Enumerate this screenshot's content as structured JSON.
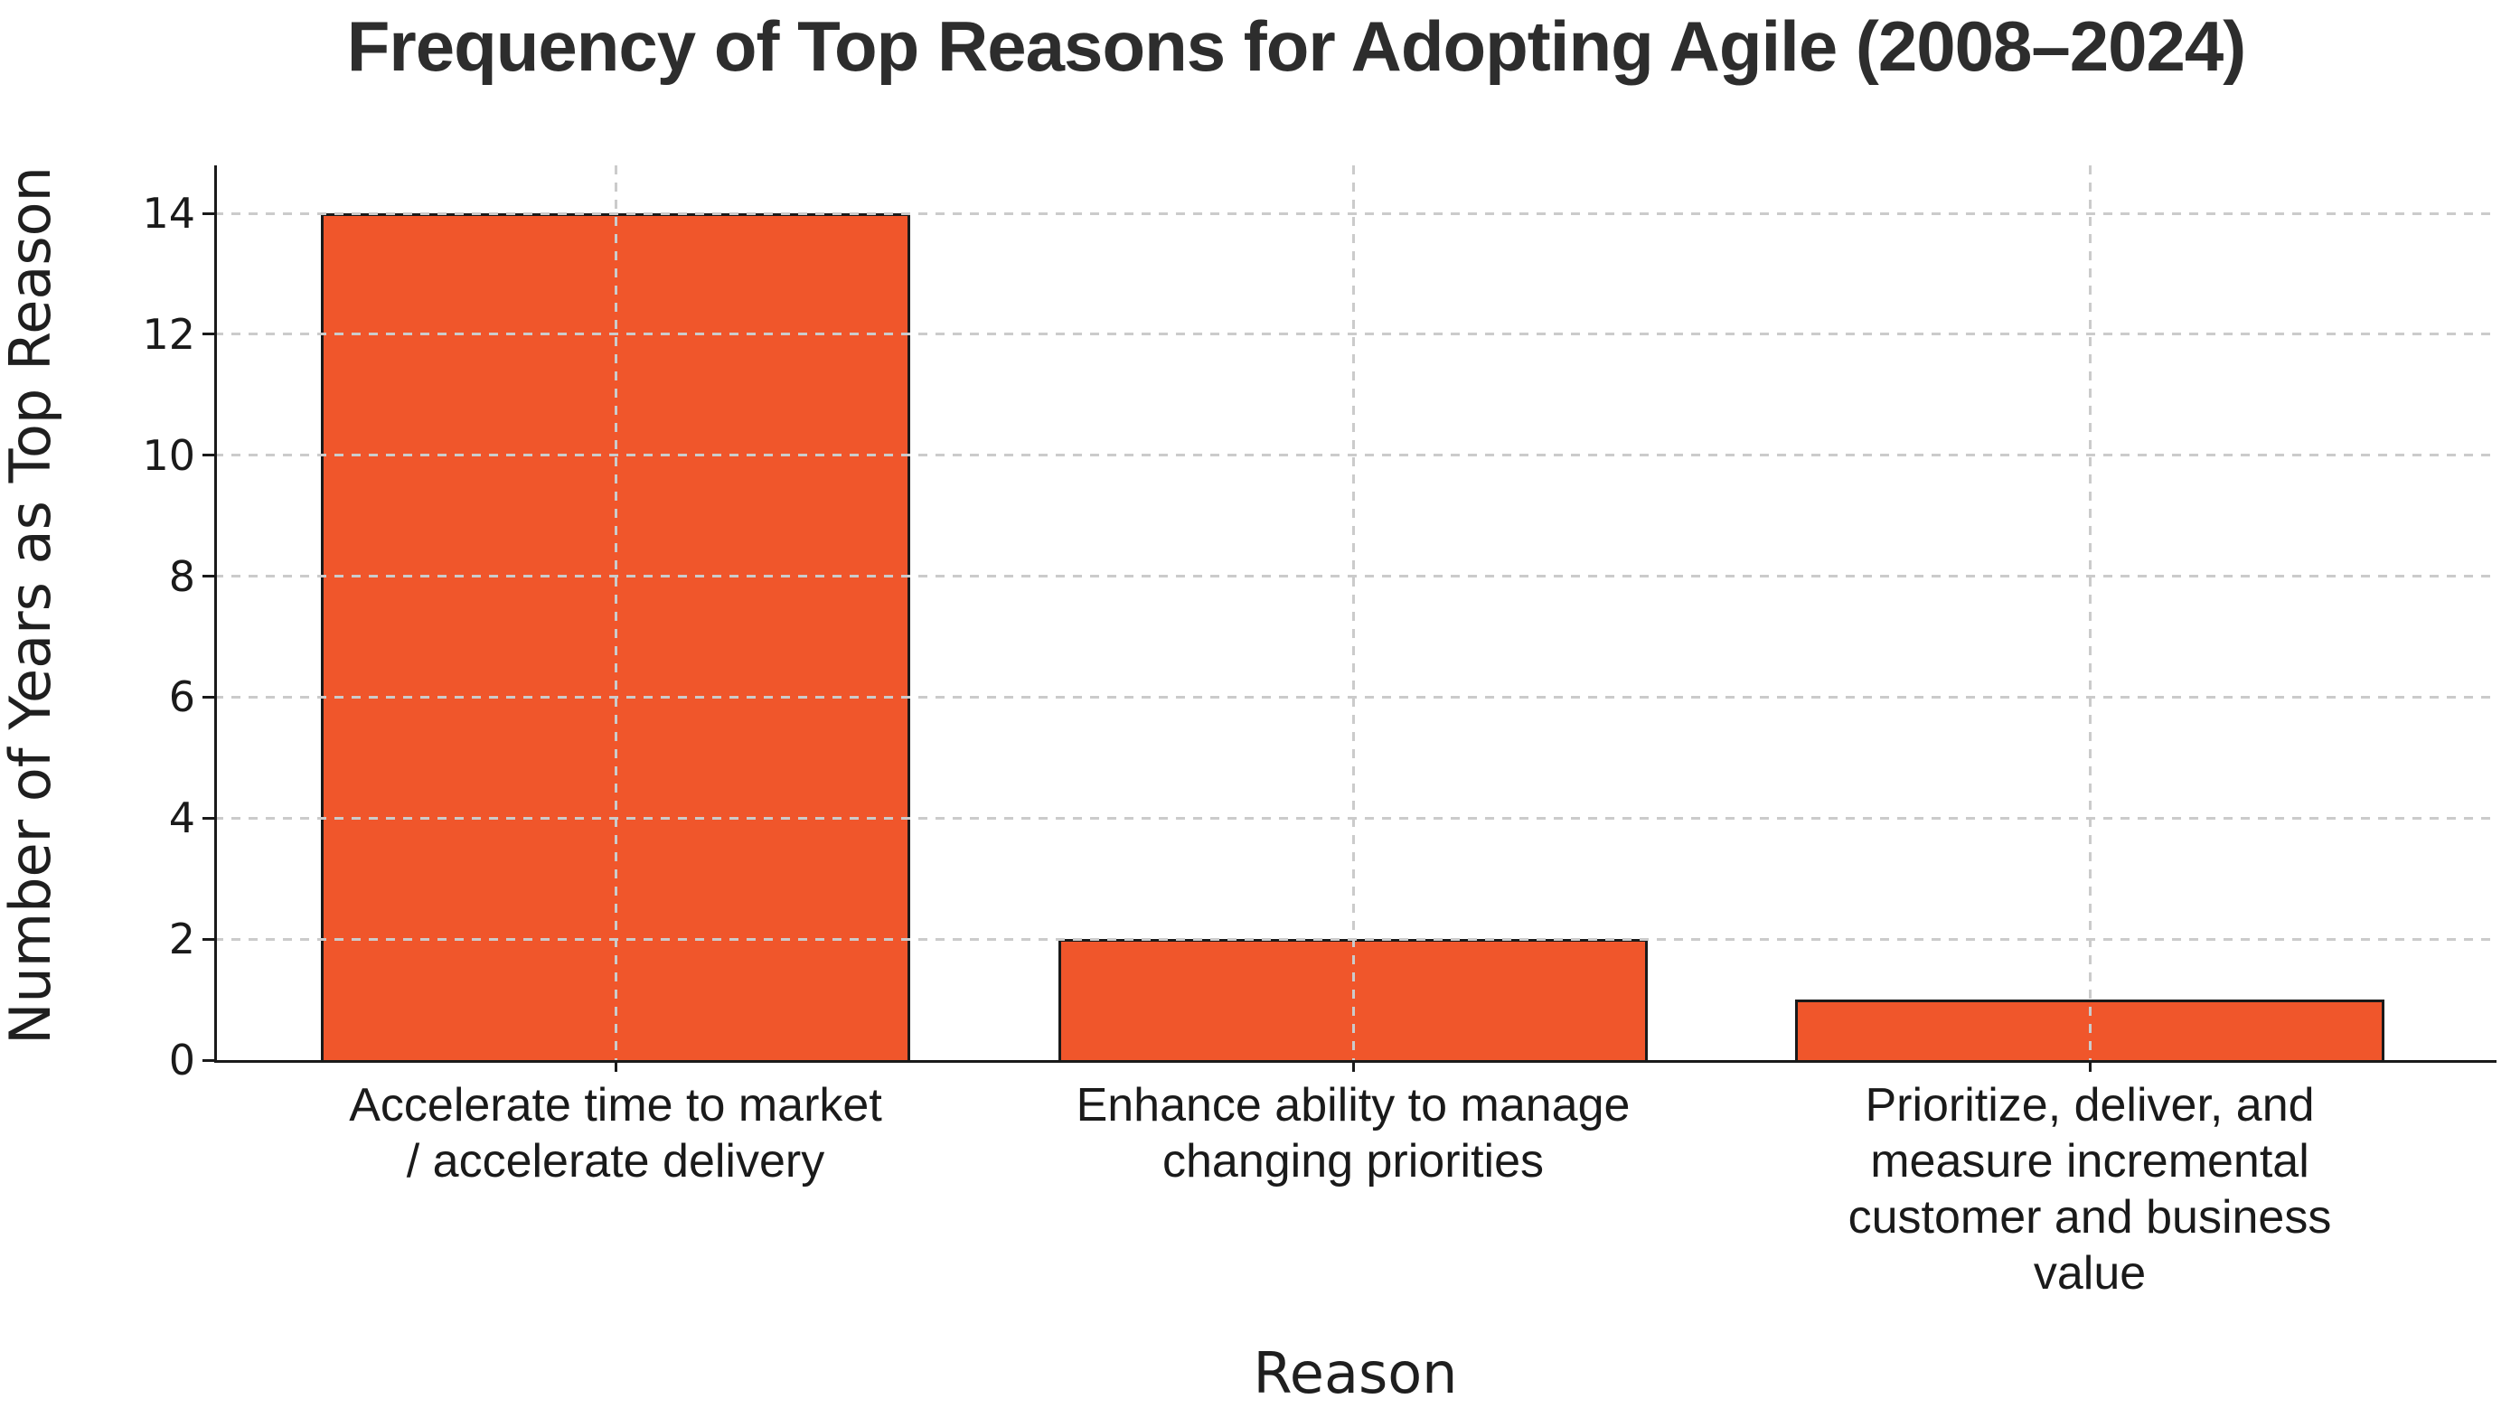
{
  "chart_data": {
    "type": "bar",
    "title": "Frequency of Top Reasons for Adopting Agile (2008–2024)",
    "xlabel": "Reason",
    "ylabel": "Number of Years as Top Reason",
    "categories": [
      "Accelerate time to market / accelerate delivery",
      "Enhance ability to manage changing priorities",
      "Prioritize, deliver, and measure incremental customer and business value"
    ],
    "category_lines": [
      [
        "Accelerate time to market",
        "/ accelerate delivery"
      ],
      [
        "Enhance ability to manage",
        "changing priorities"
      ],
      [
        "Prioritize, deliver, and",
        "measure incremental",
        "customer and business",
        "value"
      ]
    ],
    "values": [
      14,
      2,
      1
    ],
    "yticks": [
      0,
      2,
      4,
      6,
      8,
      10,
      12,
      14
    ],
    "ylim": [
      0,
      14.8
    ],
    "grid": "dashed gridlines on both axes, drawn above bars",
    "legend": "none",
    "colors": {
      "bar_fill": "#F0562B",
      "bar_edge": "#1A1A1A",
      "grid": "#CBCBCB",
      "text": "#1F1F1F",
      "background": "#FFFFFF"
    }
  }
}
